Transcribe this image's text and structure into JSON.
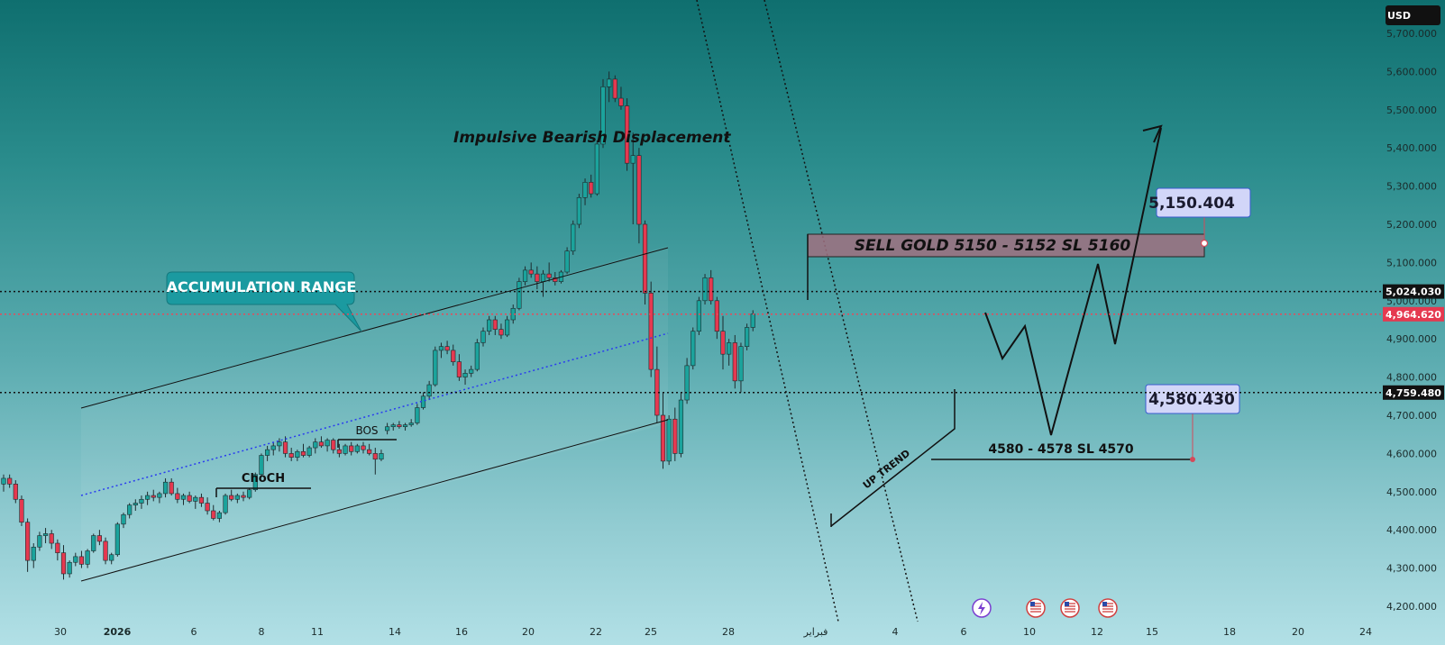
{
  "chart_data": {
    "type": "candlestick",
    "currency": "USD",
    "ylim": [
      4200,
      5700
    ],
    "y_ticks": [
      "5,700.000",
      "5,600.000",
      "5,500.000",
      "5,400.000",
      "5,300.000",
      "5,200.000",
      "5,100.000",
      "5,000.000",
      "4,900.000",
      "4,800.000",
      "4,700.000",
      "4,600.000",
      "4,500.000",
      "4,400.000",
      "4,300.000",
      "4,200.000"
    ],
    "x_ticks": [
      "30",
      "2026",
      "6",
      "8",
      "11",
      "14",
      "16",
      "20",
      "22",
      "25",
      "28",
      "فبراير",
      "4",
      "6",
      "10",
      "12",
      "15",
      "18",
      "20",
      "24"
    ],
    "price_lines": [
      {
        "label": "5,024.030",
        "value": 5024.03,
        "style": "dotted",
        "color": "#111111"
      },
      {
        "label": "4,964.620",
        "value": 4964.62,
        "style": "dotted",
        "color": "#e64a5a"
      },
      {
        "label": "4,759.480",
        "value": 4759.48,
        "style": "dotted",
        "color": "#111111"
      }
    ],
    "annotations": {
      "accumulation_range": "ACCUMULATION RANGE",
      "impulsive": "Impulsive Bearish Displacement",
      "sell_zone": "SELL GOLD 5150 - 5152 SL 5160",
      "sell_price": "5,150.404",
      "buy_zone": "4580 - 4578 SL 4570",
      "buy_price": "4,580.430",
      "choch": "ChoCH",
      "bos": "BOS",
      "uptrend": "UP TREND"
    },
    "candles_ohlc": [
      [
        4520,
        4545,
        4500,
        4535
      ],
      [
        4535,
        4545,
        4510,
        4520
      ],
      [
        4520,
        4530,
        4470,
        4480
      ],
      [
        4480,
        4490,
        4410,
        4420
      ],
      [
        4420,
        4430,
        4290,
        4320
      ],
      [
        4320,
        4365,
        4300,
        4355
      ],
      [
        4355,
        4395,
        4345,
        4385
      ],
      [
        4385,
        4405,
        4365,
        4390
      ],
      [
        4390,
        4400,
        4350,
        4365
      ],
      [
        4365,
        4375,
        4320,
        4340
      ],
      [
        4340,
        4360,
        4270,
        4285
      ],
      [
        4285,
        4320,
        4275,
        4315
      ],
      [
        4315,
        4340,
        4305,
        4330
      ],
      [
        4330,
        4345,
        4300,
        4310
      ],
      [
        4310,
        4350,
        4300,
        4345
      ],
      [
        4345,
        4390,
        4340,
        4385
      ],
      [
        4385,
        4400,
        4360,
        4370
      ],
      [
        4370,
        4380,
        4310,
        4320
      ],
      [
        4320,
        4340,
        4310,
        4335
      ],
      [
        4335,
        4420,
        4330,
        4415
      ],
      [
        4415,
        4445,
        4405,
        4440
      ],
      [
        4440,
        4470,
        4430,
        4465
      ],
      [
        4465,
        4480,
        4450,
        4470
      ],
      [
        4470,
        4490,
        4455,
        4480
      ],
      [
        4480,
        4500,
        4465,
        4490
      ],
      [
        4490,
        4505,
        4475,
        4485
      ],
      [
        4485,
        4500,
        4470,
        4495
      ],
      [
        4495,
        4535,
        4485,
        4525
      ],
      [
        4525,
        4535,
        4490,
        4495
      ],
      [
        4495,
        4510,
        4470,
        4480
      ],
      [
        4480,
        4495,
        4465,
        4490
      ],
      [
        4490,
        4500,
        4470,
        4475
      ],
      [
        4475,
        4490,
        4455,
        4485
      ],
      [
        4485,
        4495,
        4460,
        4470
      ],
      [
        4470,
        4485,
        4440,
        4450
      ],
      [
        4450,
        4465,
        4425,
        4430
      ],
      [
        4430,
        4450,
        4420,
        4445
      ],
      [
        4445,
        4495,
        4440,
        4490
      ],
      [
        4490,
        4505,
        4475,
        4480
      ],
      [
        4480,
        4495,
        4470,
        4490
      ],
      [
        4490,
        4500,
        4475,
        4485
      ],
      [
        4485,
        4510,
        4480,
        4505
      ],
      [
        4505,
        4550,
        4500,
        4545
      ],
      [
        4545,
        4600,
        4540,
        4595
      ],
      [
        4595,
        4620,
        4580,
        4610
      ],
      [
        4610,
        4630,
        4595,
        4620
      ],
      [
        4620,
        4640,
        4605,
        4630
      ],
      [
        4630,
        4645,
        4590,
        4600
      ],
      [
        4600,
        4615,
        4580,
        4590
      ],
      [
        4590,
        4610,
        4580,
        4605
      ],
      [
        4605,
        4625,
        4590,
        4595
      ],
      [
        4595,
        4620,
        4590,
        4615
      ],
      [
        4615,
        4640,
        4600,
        4630
      ],
      [
        4630,
        4645,
        4615,
        4620
      ],
      [
        4620,
        4640,
        4605,
        4635
      ],
      [
        4635,
        4640,
        4600,
        4610
      ],
      [
        4610,
        4625,
        4590,
        4600
      ],
      [
        4600,
        4625,
        4595,
        4620
      ],
      [
        4620,
        4630,
        4595,
        4605
      ],
      [
        4605,
        4625,
        4600,
        4620
      ],
      [
        4620,
        4630,
        4600,
        4610
      ],
      [
        4610,
        4625,
        4595,
        4600
      ],
      [
        4600,
        4615,
        4545,
        4585
      ],
      [
        4585,
        4610,
        4580,
        4600
      ],
      [
        4660,
        4680,
        4650,
        4670
      ],
      [
        4670,
        4680,
        4660,
        4675
      ],
      [
        4675,
        4685,
        4665,
        4670
      ],
      [
        4670,
        4680,
        4660,
        4675
      ],
      [
        4675,
        4690,
        4670,
        4680
      ],
      [
        4680,
        4730,
        4675,
        4720
      ],
      [
        4720,
        4760,
        4715,
        4750
      ],
      [
        4750,
        4790,
        4740,
        4780
      ],
      [
        4780,
        4880,
        4775,
        4870
      ],
      [
        4870,
        4890,
        4850,
        4880
      ],
      [
        4880,
        4895,
        4860,
        4870
      ],
      [
        4870,
        4885,
        4830,
        4840
      ],
      [
        4840,
        4860,
        4790,
        4800
      ],
      [
        4800,
        4820,
        4780,
        4810
      ],
      [
        4810,
        4830,
        4800,
        4820
      ],
      [
        4820,
        4900,
        4815,
        4890
      ],
      [
        4890,
        4930,
        4880,
        4920
      ],
      [
        4920,
        4960,
        4910,
        4950
      ],
      [
        4950,
        4960,
        4910,
        4925
      ],
      [
        4925,
        4940,
        4900,
        4910
      ],
      [
        4910,
        4960,
        4905,
        4950
      ],
      [
        4950,
        4990,
        4940,
        4980
      ],
      [
        4980,
        5060,
        4975,
        5050
      ],
      [
        5050,
        5090,
        5040,
        5080
      ],
      [
        5080,
        5100,
        5060,
        5070
      ],
      [
        5070,
        5090,
        5030,
        5050
      ],
      [
        5050,
        5080,
        5010,
        5070
      ],
      [
        5070,
        5100,
        5050,
        5060
      ],
      [
        5060,
        5075,
        5040,
        5050
      ],
      [
        5050,
        5080,
        5045,
        5075
      ],
      [
        5075,
        5140,
        5070,
        5130
      ],
      [
        5130,
        5210,
        5120,
        5200
      ],
      [
        5200,
        5280,
        5190,
        5270
      ],
      [
        5270,
        5320,
        5250,
        5310
      ],
      [
        5310,
        5330,
        5270,
        5280
      ],
      [
        5280,
        5420,
        5275,
        5410
      ],
      [
        5410,
        5580,
        5400,
        5560
      ],
      [
        5560,
        5600,
        5520,
        5580
      ],
      [
        5580,
        5590,
        5520,
        5530
      ],
      [
        5530,
        5560,
        5500,
        5510
      ],
      [
        5510,
        5530,
        5340,
        5360
      ],
      [
        5360,
        5440,
        5200,
        5380
      ],
      [
        5380,
        5400,
        5150,
        5200
      ],
      [
        5200,
        5210,
        4990,
        5020
      ],
      [
        5020,
        5050,
        4800,
        4820
      ],
      [
        4820,
        4880,
        4680,
        4700
      ],
      [
        4700,
        4760,
        4560,
        4580
      ],
      [
        4580,
        4700,
        4570,
        4690
      ],
      [
        4690,
        4720,
        4580,
        4600
      ],
      [
        4600,
        4760,
        4590,
        4740
      ],
      [
        4740,
        4850,
        4730,
        4830
      ],
      [
        4830,
        4930,
        4820,
        4920
      ],
      [
        4920,
        5010,
        4910,
        5000
      ],
      [
        5000,
        5070,
        4990,
        5060
      ],
      [
        5060,
        5080,
        4990,
        5000
      ],
      [
        5000,
        5010,
        4900,
        4920
      ],
      [
        4920,
        4960,
        4820,
        4860
      ],
      [
        4860,
        4900,
        4830,
        4890
      ],
      [
        4890,
        4910,
        4770,
        4790
      ],
      [
        4790,
        4890,
        4760,
        4880
      ],
      [
        4880,
        4940,
        4870,
        4930
      ],
      [
        4930,
        4975,
        4920,
        4965
      ]
    ]
  }
}
